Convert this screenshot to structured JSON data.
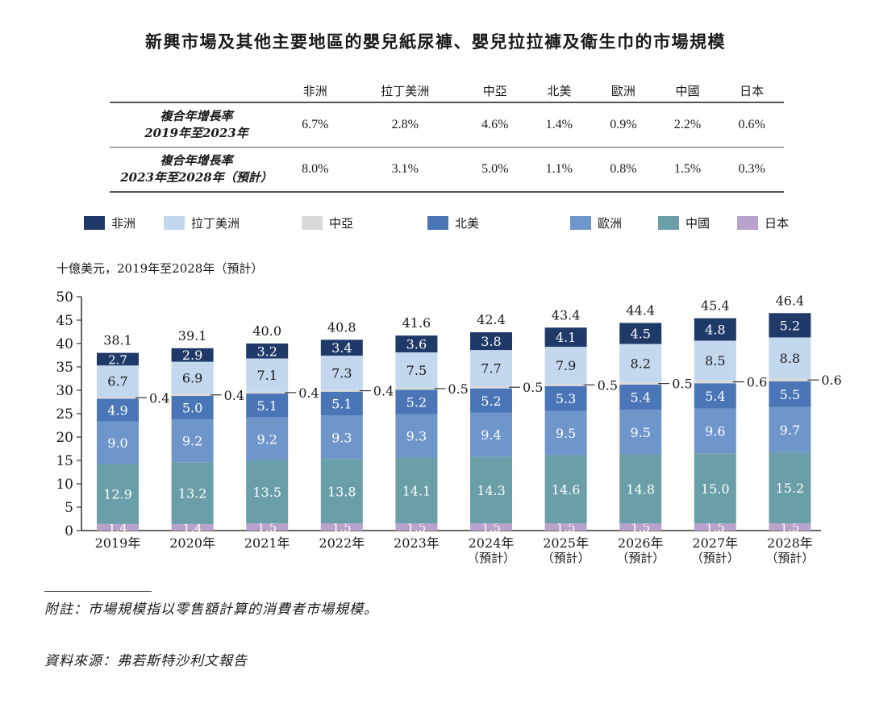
{
  "title": "新興市場及其他主要地區的嬰兒紙尿褲、嬰兒拉拉褲及衛生巾的市場規模",
  "cagr_table": {
    "columns": [
      "非洲",
      "拉丁美洲",
      "中亞",
      "北美",
      "歐洲",
      "中國",
      "日本"
    ],
    "rows": [
      {
        "label_line1": "複合年增長率",
        "label_line2": "2019年至2023年",
        "values": [
          "6.7%",
          "2.8%",
          "4.6%",
          "1.4%",
          "0.9%",
          "2.2%",
          "0.6%"
        ]
      },
      {
        "label_line1": "複合年增長率",
        "label_line2": "2023年至2028年（預計）",
        "values": [
          "8.0%",
          "3.1%",
          "5.0%",
          "1.1%",
          "0.8%",
          "1.5%",
          "0.3%"
        ]
      }
    ]
  },
  "legend": [
    {
      "name": "非洲",
      "color": "#1f3a68"
    },
    {
      "name": "拉丁美洲",
      "color": "#c3d7ee"
    },
    {
      "name": "中亞",
      "color": "#dadada"
    },
    {
      "name": "北美",
      "color": "#4a76b8"
    },
    {
      "name": "歐洲",
      "color": "#6f96cb"
    },
    {
      "name": "中國",
      "color": "#6a9ea9"
    },
    {
      "name": "日本",
      "color": "#b9a3cc"
    }
  ],
  "unit_label": "十億美元，2019年至2028年（預計）",
  "chart_data": {
    "type": "bar",
    "stacked": true,
    "title": "新興市場及其他主要地區的嬰兒紙尿褲、嬰兒拉拉褲及衛生巾的市場規模",
    "ylabel": "十億美元，2019年至2028年（預計）",
    "xlabel": "",
    "ylim": [
      0,
      50
    ],
    "yticks": [
      0,
      5,
      10,
      15,
      20,
      25,
      30,
      35,
      40,
      45,
      50
    ],
    "legend_position": "top",
    "grid": false,
    "categories": [
      "2019年",
      "2020年",
      "2021年",
      "2022年",
      "2023年",
      "2024年",
      "2025年",
      "2026年",
      "2027年",
      "2028年"
    ],
    "category_sublabels": [
      "",
      "",
      "",
      "",
      "",
      "（預計）",
      "（預計）",
      "（預計）",
      "（預計）",
      "（預計）"
    ],
    "totals": [
      38.1,
      39.1,
      40.0,
      40.8,
      41.6,
      42.4,
      43.4,
      44.4,
      45.4,
      46.4
    ],
    "series": [
      {
        "name": "日本",
        "color": "#b9a3cc",
        "label_color": "#ffffff",
        "values": [
          1.4,
          1.4,
          1.5,
          1.5,
          1.5,
          1.5,
          1.5,
          1.5,
          1.5,
          1.5
        ]
      },
      {
        "name": "中國",
        "color": "#6a9ea9",
        "label_color": "#ffffff",
        "values": [
          12.9,
          13.2,
          13.5,
          13.8,
          14.1,
          14.3,
          14.6,
          14.8,
          15.0,
          15.2
        ]
      },
      {
        "name": "歐洲",
        "color": "#6f96cb",
        "label_color": "#ffffff",
        "values": [
          9.0,
          9.2,
          9.2,
          9.3,
          9.3,
          9.4,
          9.5,
          9.5,
          9.6,
          9.7
        ]
      },
      {
        "name": "北美",
        "color": "#4a76b8",
        "label_color": "#ffffff",
        "values": [
          4.9,
          5.0,
          5.1,
          5.1,
          5.2,
          5.2,
          5.3,
          5.4,
          5.4,
          5.5
        ]
      },
      {
        "name": "中亞",
        "color": "#dadada",
        "label_color": "#1a1a1a",
        "label_outside": true,
        "values": [
          0.4,
          0.4,
          0.4,
          0.4,
          0.5,
          0.5,
          0.5,
          0.5,
          0.6,
          0.6
        ]
      },
      {
        "name": "拉丁美洲",
        "color": "#c3d7ee",
        "label_color": "#1a1a1a",
        "values": [
          6.7,
          6.9,
          7.1,
          7.3,
          7.5,
          7.7,
          7.9,
          8.2,
          8.5,
          8.8
        ]
      },
      {
        "name": "非洲",
        "color": "#1f3a68",
        "label_color": "#ffffff",
        "values": [
          2.7,
          2.9,
          3.2,
          3.4,
          3.6,
          3.8,
          4.1,
          4.5,
          4.8,
          5.2
        ]
      }
    ]
  },
  "footnote": "附註：市場規模指以零售額計算的消費者市場規模。",
  "source": "資料來源：弗若斯特沙利文報告"
}
